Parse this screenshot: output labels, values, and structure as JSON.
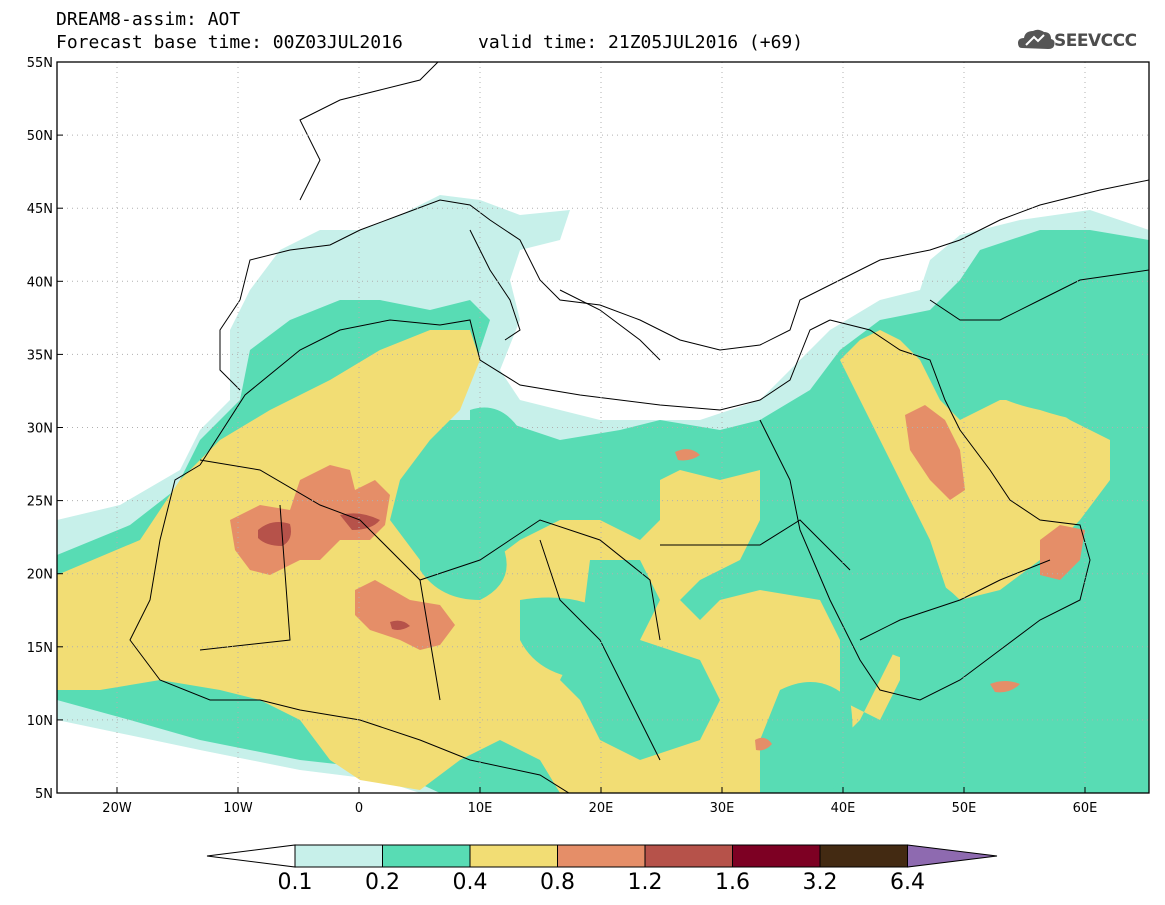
{
  "header": {
    "line1": "DREAM8-assim: AOT",
    "base_time": "Forecast base time: 00Z03JUL2016",
    "valid_time": "valid time: 21Z05JUL2016 (+69)",
    "logo_text": "SEEVCCC"
  },
  "map": {
    "lat_labels": [
      "55N",
      "50N",
      "45N",
      "40N",
      "35N",
      "30N",
      "25N",
      "20N",
      "15N",
      "10N",
      "5N"
    ],
    "lon_labels": [
      "20W",
      "10W",
      "0",
      "10E",
      "20E",
      "30E",
      "40E",
      "50E",
      "60E"
    ],
    "colors": {
      "bin1": "#c7f0ea",
      "bin2": "#58dcb4",
      "bin3": "#f2dd74",
      "bin4": "#e58e68",
      "bin5": "#b6524a",
      "bin6": "#7d0023",
      "bin7": "#432a12",
      "bin8": "#8e6ab0",
      "coast": "#000000"
    }
  },
  "colorbar": {
    "labels": [
      "0.1",
      "0.2",
      "0.4",
      "0.8",
      "1.2",
      "1.6",
      "3.2",
      "6.4"
    ],
    "colors": [
      "#ffffff",
      "#c7f0ea",
      "#58dcb4",
      "#f2dd74",
      "#e58e68",
      "#b6524a",
      "#7d0023",
      "#432a12",
      "#8e6ab0"
    ]
  }
}
